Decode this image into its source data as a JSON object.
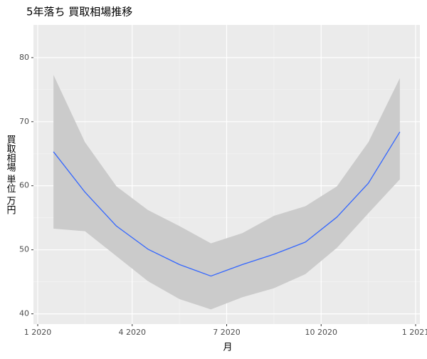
{
  "chart_data": {
    "type": "line",
    "title": "5年落ち 買取相場推移",
    "x_label": "月",
    "y_label": "買取相場 単位 万円",
    "x": [
      "2020-01",
      "2020-02",
      "2020-03",
      "2020-04",
      "2020-05",
      "2020-06",
      "2020-07",
      "2020-08",
      "2020-09",
      "2020-10",
      "2020-11",
      "2020-12"
    ],
    "series": [
      {
        "color": "#3366FF",
        "values": [
          65.3,
          59.0,
          53.7,
          50.1,
          47.7,
          45.9,
          47.7,
          49.3,
          51.2,
          55.1,
          60.4,
          68.4
        ],
        "upper": [
          77.3,
          66.8,
          59.9,
          56.2,
          53.7,
          51.0,
          52.6,
          55.3,
          56.8,
          59.9,
          66.8,
          76.8
        ],
        "lower": [
          53.3,
          52.9,
          49.0,
          45.1,
          42.3,
          40.7,
          42.6,
          44.0,
          46.2,
          50.3,
          55.7,
          61.0
        ],
        "band_color": "#CBCBCB"
      }
    ],
    "xlim": [
      "2020-01",
      "2021-01"
    ],
    "xticks": [
      {
        "value": "2020-01",
        "label": "1 2020"
      },
      {
        "value": "2020-04",
        "label": "4 2020"
      },
      {
        "value": "2020-07",
        "label": "7 2020"
      },
      {
        "value": "2020-10",
        "label": "10 2020"
      },
      {
        "value": "2021-01",
        "label": "1 2021"
      }
    ],
    "ylim": [
      38.4,
      85.1
    ],
    "yticks": [
      40,
      50,
      60,
      70,
      80
    ],
    "grid": true
  }
}
